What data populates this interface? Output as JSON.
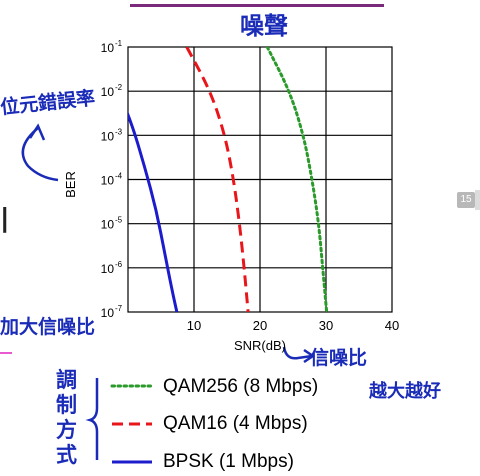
{
  "chart_data": {
    "type": "line",
    "xlabel": "SNR(dB)",
    "ylabel": "BER",
    "xlim": [
      0,
      40
    ],
    "ylim_log10": [
      -7,
      -1
    ],
    "xscale": "linear",
    "yscale": "log",
    "grid": true,
    "x_ticks": [
      "10",
      "20",
      "30",
      "40"
    ],
    "y_ticks": [
      {
        "base": "10",
        "exp": "-1"
      },
      {
        "base": "10",
        "exp": "-2"
      },
      {
        "base": "10",
        "exp": "-3"
      },
      {
        "base": "10",
        "exp": "-4"
      },
      {
        "base": "10",
        "exp": "-5"
      },
      {
        "base": "10",
        "exp": "-6"
      },
      {
        "base": "10",
        "exp": "-7"
      }
    ],
    "legend_placement": "below",
    "series": [
      {
        "name": "QAM256 (8 Mbps)",
        "color": "#2a9a2a",
        "dash": "dotted",
        "points": [
          [
            21.1,
            0.1
          ],
          [
            24.5,
            0.01
          ],
          [
            26.6,
            0.001
          ],
          [
            27.9,
            0.0001
          ],
          [
            28.9,
            1e-05
          ],
          [
            29.5,
            1e-06
          ],
          [
            30.1,
            1e-07
          ]
        ]
      },
      {
        "name": "QAM16 (4 Mbps)",
        "color": "#e8161b",
        "dash": "dashed",
        "points": [
          [
            8.9,
            0.1
          ],
          [
            12.5,
            0.01
          ],
          [
            14.7,
            0.001
          ],
          [
            16.0,
            0.0001
          ],
          [
            16.9,
            1e-05
          ],
          [
            17.6,
            1e-06
          ],
          [
            18.2,
            1e-07
          ]
        ]
      },
      {
        "name": "BPSK (1 Mbps)",
        "color": "#1c1ccc",
        "dash": "solid",
        "points": [
          [
            -2.0,
            0.015
          ],
          [
            0.5,
            0.002
          ],
          [
            2.5,
            0.0002
          ],
          [
            4.3,
            2e-05
          ],
          [
            5.6,
            2e-06
          ],
          [
            6.7,
            3e-07
          ],
          [
            7.4,
            1e-07
          ]
        ]
      }
    ]
  },
  "annotations": {
    "title_note": "噪聲",
    "ber_note": "位元錯誤率",
    "snr_note": "信噪比",
    "add_note": "加大信噪比",
    "better_note": "越大越好",
    "modulation_note": "調制方式",
    "page_number": "15",
    "left_fragment": "l"
  }
}
